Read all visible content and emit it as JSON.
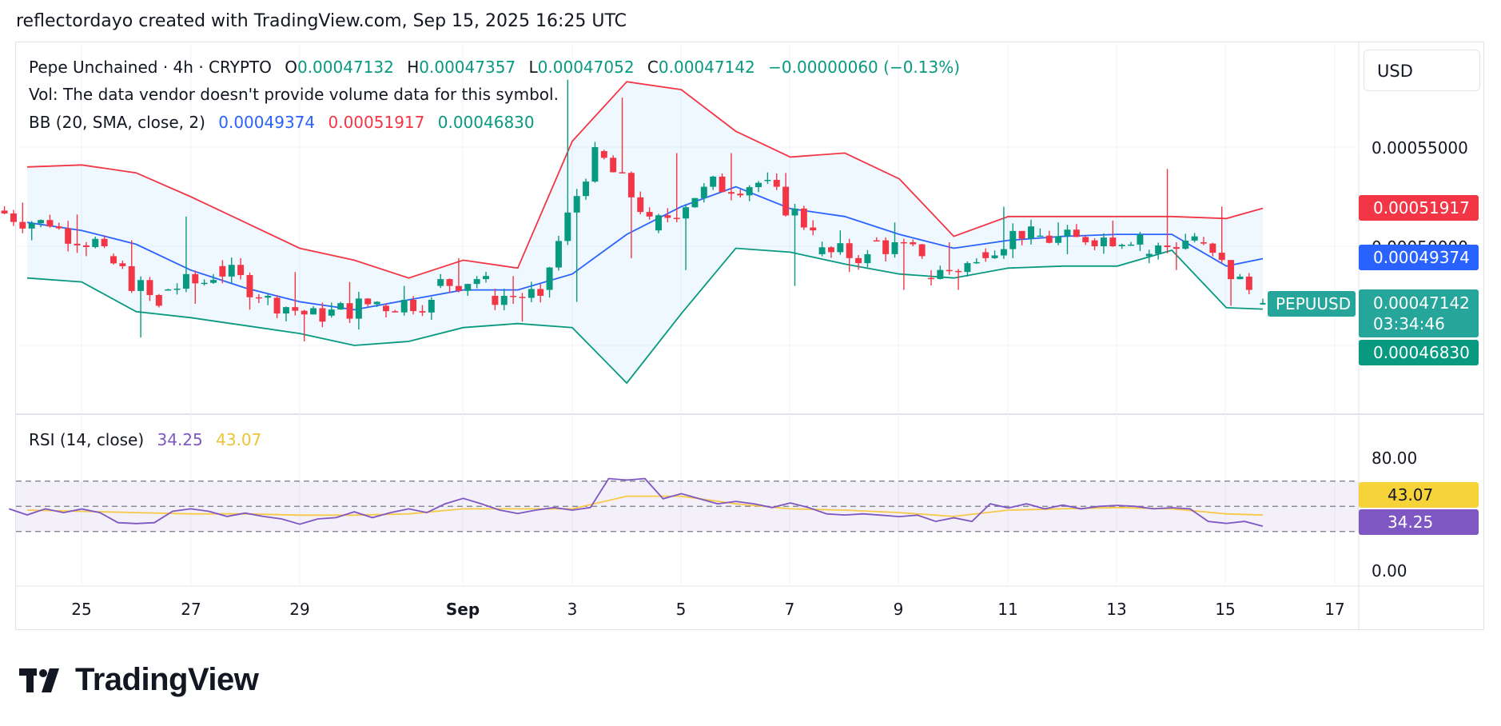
{
  "header": {
    "text": "reflectordayo created with TradingView.com, Sep 15, 2025 16:25 UTC"
  },
  "symbol": {
    "title": "Pepe Unchained · 4h · CRYPTO",
    "open_key": "O",
    "open": "0.00047132",
    "high_key": "H",
    "high": "0.00047357",
    "low_key": "L",
    "low": "0.00047052",
    "close_key": "C",
    "close": "0.00047142",
    "change": "−0.00000060 (−0.13%)",
    "vol_text": "Vol: The data vendor doesn't provide volume data for this symbol.",
    "bb_label": "BB (20, SMA, close, 2)",
    "bb_basis": "0.00049374",
    "bb_upper": "0.00051917",
    "bb_lower": "0.00046830",
    "rsi_label": "RSI (14, close)",
    "rsi_value": "34.25",
    "rsi_ma": "43.07"
  },
  "price_axis": {
    "currency": "USD",
    "labels": [
      "0.00055000",
      "0.00050000"
    ],
    "badge_upper": "0.00051917",
    "badge_basis": "0.00049374",
    "badge_last": "0.00047142",
    "badge_countdown": "03:34:46",
    "badge_lower": "0.00046830",
    "symbol_badge": "PEPUUSD"
  },
  "rsi_axis": {
    "labels": [
      "80.00",
      "0.00"
    ],
    "badge_ma": "43.07",
    "badge_rsi": "34.25"
  },
  "time_axis": {
    "labels": [
      "25",
      "27",
      "29",
      "Sep",
      "3",
      "5",
      "7",
      "9",
      "11",
      "13",
      "15",
      "17"
    ]
  },
  "logo": {
    "text": "TradingView"
  },
  "colors": {
    "up": "#089981",
    "down": "#f23645",
    "basis": "#2962ff",
    "upper": "#f23645",
    "lower": "#089981",
    "bb_fill": "#2196f3",
    "rsi": "#7e57c2",
    "rsi_ma": "#f7c948",
    "rsi_band": "#7e57c2"
  },
  "chart_data": [
    {
      "type": "candlestick",
      "title": "Pepe Unchained · 4h · CRYPTO",
      "x_axis": "date (Aug 24 – Sep 17, 2025)",
      "ylim": [
        0.00042,
        0.00059
      ],
      "y_ticks": [
        0.00055,
        0.0005
      ],
      "candles_daily_approx": [
        {
          "d": "Aug 24",
          "o": 0.000518,
          "c": 0.00051,
          "h": 0.000522,
          "l": 0.000503
        },
        {
          "d": "Aug 25",
          "o": 0.00051,
          "c": 0.0005,
          "h": 0.000516,
          "l": 0.000495
        },
        {
          "d": "Aug 26",
          "o": 0.000495,
          "c": 0.00047,
          "h": 0.000503,
          "l": 0.000454
        },
        {
          "d": "Aug 27",
          "o": 0.000478,
          "c": 0.000483,
          "h": 0.000515,
          "l": 0.000471
        },
        {
          "d": "Aug 28",
          "o": 0.00049,
          "c": 0.000475,
          "h": 0.000494,
          "l": 0.000468
        },
        {
          "d": "Aug 29",
          "o": 0.000474,
          "c": 0.000462,
          "h": 0.000487,
          "l": 0.000452
        },
        {
          "d": "Aug 30",
          "o": 0.000465,
          "c": 0.000472,
          "h": 0.000482,
          "l": 0.000458
        },
        {
          "d": "Aug 31",
          "o": 0.00047,
          "c": 0.000473,
          "h": 0.00048,
          "l": 0.000466
        },
        {
          "d": "Sep 1",
          "o": 0.00048,
          "c": 0.000485,
          "h": 0.000494,
          "l": 0.000475
        },
        {
          "d": "Sep 2",
          "o": 0.000475,
          "c": 0.000475,
          "h": 0.000485,
          "l": 0.000462
        },
        {
          "d": "Sep 3",
          "o": 0.000478,
          "c": 0.00055,
          "h": 0.000584,
          "l": 0.000472
        },
        {
          "d": "Sep 4",
          "o": 0.000548,
          "c": 0.000515,
          "h": 0.000575,
          "l": 0.000494
        },
        {
          "d": "Sep 5",
          "o": 0.000508,
          "c": 0.00053,
          "h": 0.000547,
          "l": 0.000488
        },
        {
          "d": "Sep 6",
          "o": 0.00053,
          "c": 0.000532,
          "h": 0.000547,
          "l": 0.000525
        },
        {
          "d": "Sep 7",
          "o": 0.000533,
          "c": 0.000508,
          "h": 0.000537,
          "l": 0.00048
        },
        {
          "d": "Sep 8",
          "o": 0.000496,
          "c": 0.000496,
          "h": 0.000508,
          "l": 0.000487
        },
        {
          "d": "Sep 9",
          "o": 0.000503,
          "c": 0.000495,
          "h": 0.000512,
          "l": 0.000478
        },
        {
          "d": "Sep 10",
          "o": 0.000484,
          "c": 0.000492,
          "h": 0.000502,
          "l": 0.000478
        },
        {
          "d": "Sep 11",
          "o": 0.000497,
          "c": 0.00051,
          "h": 0.00052,
          "l": 0.000494
        },
        {
          "d": "Sep 12",
          "o": 0.000505,
          "c": 0.000502,
          "h": 0.000512,
          "l": 0.000496
        },
        {
          "d": "Sep 13",
          "o": 0.000503,
          "c": 0.000506,
          "h": 0.000513,
          "l": 0.0005
        },
        {
          "d": "Sep 14",
          "o": 0.000495,
          "c": 0.000505,
          "h": 0.000539,
          "l": 0.000488
        },
        {
          "d": "Sep 15",
          "o": 0.000502,
          "c": 0.000478,
          "h": 0.00052,
          "l": 0.00047
        }
      ],
      "bollinger": {
        "upper_daily_approx": [
          0.00054,
          0.000541,
          0.000537,
          0.000525,
          0.000512,
          0.000499,
          0.000493,
          0.000484,
          0.000493,
          0.000489,
          0.000553,
          0.000583,
          0.000579,
          0.000558,
          0.000545,
          0.000547,
          0.000534,
          0.000505,
          0.000515,
          0.000515,
          0.000515,
          0.000515,
          0.000514
        ],
        "basis_daily_approx": [
          0.000512,
          0.000508,
          0.000501,
          0.000488,
          0.000479,
          0.000472,
          0.000468,
          0.000473,
          0.000478,
          0.000478,
          0.000486,
          0.000506,
          0.00052,
          0.00053,
          0.000519,
          0.000515,
          0.000506,
          0.000499,
          0.000503,
          0.000505,
          0.000506,
          0.000506,
          0.00049
        ],
        "lower_daily_approx": [
          0.000484,
          0.000482,
          0.000467,
          0.000464,
          0.00046,
          0.000456,
          0.00045,
          0.000452,
          0.000459,
          0.000461,
          0.000459,
          0.000431,
          0.000466,
          0.000499,
          0.000497,
          0.000491,
          0.000486,
          0.000484,
          0.000489,
          0.00049,
          0.00049,
          0.000498,
          0.000469
        ],
        "latest": {
          "basis": 0.00049374,
          "upper": 0.00051917,
          "lower": 0.0004683
        }
      },
      "last": {
        "open": 0.00047132,
        "high": 0.00047357,
        "low": 0.00047052,
        "close": 0.00047142
      }
    },
    {
      "type": "line",
      "title": "RSI (14, close)",
      "ylim": [
        0,
        100
      ],
      "y_ticks": [
        80,
        0
      ],
      "bands": [
        70,
        50,
        30
      ],
      "series": [
        {
          "name": "RSI",
          "daily_approx": [
            48,
            45,
            37,
            46,
            42,
            40,
            41,
            45,
            52,
            47,
            49,
            72,
            56,
            52,
            49,
            44,
            43,
            38,
            52,
            48,
            50,
            48,
            38
          ],
          "latest": 34.25
        },
        {
          "name": "RSI MA",
          "daily_approx": [
            47,
            46,
            45,
            44,
            44,
            43,
            43,
            44,
            48,
            48,
            48,
            58,
            58,
            52,
            48,
            47,
            45,
            42,
            47,
            48,
            49,
            48,
            44
          ],
          "latest": 43.07
        }
      ]
    }
  ]
}
